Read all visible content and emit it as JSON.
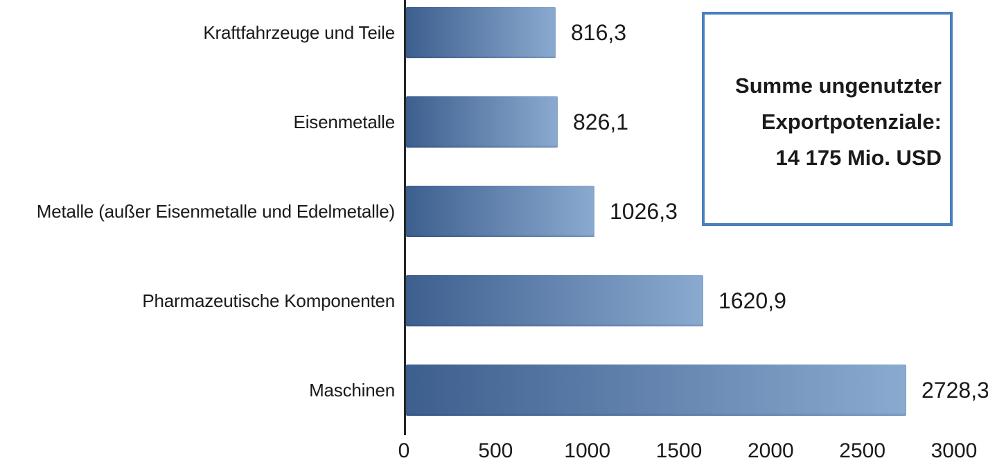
{
  "chart_data": {
    "type": "bar",
    "orientation": "horizontal",
    "categories": [
      "Kraftfahrzeuge und Teile",
      "Eisenmetalle",
      "Metalle (außer Eisenmetalle und Edelmetalle)",
      "Pharmazeutische Komponenten",
      "Maschinen"
    ],
    "values": [
      816.3,
      826.1,
      1026.3,
      1620.9,
      2728.3
    ],
    "value_labels": [
      "816,3",
      "826,1",
      "1026,3",
      "1620,9",
      "2728,3"
    ],
    "x_ticks": [
      0,
      500,
      1000,
      1500,
      2000,
      2500,
      3000
    ],
    "x_tick_labels": [
      "0",
      "500",
      "1000",
      "1500",
      "2000",
      "2500",
      "3000"
    ],
    "xlim": [
      0,
      3000
    ],
    "grid": false,
    "legend": "none",
    "title": "",
    "xlabel": "",
    "ylabel": "",
    "bar_gradient_start": "#3D5F8E",
    "bar_gradient_end": "#8BAAD0",
    "axis_color": "#262626",
    "text_color": "#1a1a1a"
  },
  "annotation": {
    "lines": [
      "Summe ungenutzter",
      "Exportpotenziale:",
      "14 175 Mio. USD"
    ],
    "border_color": "#4A7EBD"
  }
}
